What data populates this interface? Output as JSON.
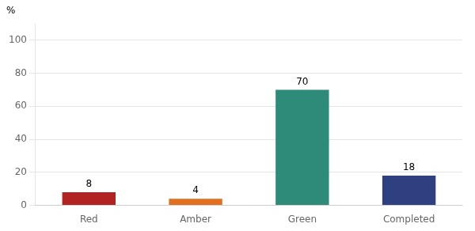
{
  "chart_data": {
    "type": "bar",
    "ylabel": "%",
    "categories": [
      "Red",
      "Amber",
      "Green",
      "Completed"
    ],
    "values": [
      8,
      4,
      70,
      18
    ],
    "colors": [
      "#b22222",
      "#e07020",
      "#2e8b7a",
      "#2e4080"
    ],
    "ylim": [
      0,
      110
    ],
    "yticks": [
      0,
      20,
      40,
      60,
      80,
      100
    ],
    "grid": true,
    "data_labels": true
  }
}
